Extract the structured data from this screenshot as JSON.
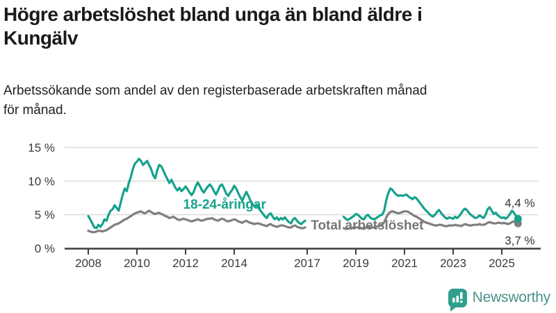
{
  "header": {
    "title_lines": [
      "Högre arbetslöshet bland unga än bland äldre i",
      "Kungälv"
    ],
    "subtitle_lines": [
      "Arbetssökande som andel av den registerbaserade arbetskraften månad",
      "för månad."
    ]
  },
  "chart_data": {
    "type": "line",
    "title": "Högre arbetslöshet bland unga än bland äldre i Kungälv",
    "subtitle": "Arbetssökande som andel av den registerbaserade arbetskraften månad för månad.",
    "grid": true,
    "x_axis": {
      "ticks": [
        2008,
        2010,
        2012,
        2014,
        2017,
        2019,
        2021,
        2023,
        2025
      ],
      "range": [
        2007.0,
        2026.5
      ]
    },
    "y_axis": {
      "ticks": [
        0,
        5,
        10,
        15
      ],
      "tick_labels": [
        "0 %",
        "5 %",
        "10 %",
        "15 %"
      ],
      "range": [
        0,
        15
      ],
      "unit": "%"
    },
    "data_gap": {
      "from": 2017.0,
      "to": 2018.5
    },
    "colors": {
      "axis": "#3d3d3d",
      "gridline": "#dcdcdc",
      "tick_label": "#3a3a3a",
      "end_label": "#333333"
    },
    "series": [
      {
        "name": "Total arbetslöshet",
        "color": "#7f7f7f",
        "label_color": "#757575",
        "inline_label": {
          "text": "Total arbetslöshet",
          "x": 2017.15,
          "y": 2.8
        },
        "end_label": {
          "text": "3,7 %",
          "x": 2025.12,
          "y": 0.55
        },
        "segments": [
          {
            "start_year": 2008.0,
            "points_per_year": 12,
            "values": [
              2.6,
              2.5,
              2.4,
              2.4,
              2.5,
              2.6,
              2.6,
              2.5,
              2.6,
              2.7,
              2.9,
              3.1,
              3.3,
              3.5,
              3.6,
              3.7,
              3.9,
              4.1,
              4.3,
              4.4,
              4.6,
              4.8,
              5.0,
              5.2,
              5.3,
              5.4,
              5.5,
              5.3,
              5.2,
              5.4,
              5.6,
              5.4,
              5.2,
              5.1,
              5.2,
              5.3,
              5.1,
              5.0,
              4.8,
              4.7,
              4.5,
              4.6,
              4.7,
              4.5,
              4.3,
              4.2,
              4.3,
              4.4,
              4.3,
              4.2,
              4.1,
              4.0,
              4.1,
              4.2,
              4.3,
              4.2,
              4.1,
              4.2,
              4.3,
              4.4,
              4.4,
              4.5,
              4.3,
              4.2,
              4.1,
              4.3,
              4.4,
              4.3,
              4.1,
              4.0,
              4.1,
              4.2,
              4.3,
              4.2,
              4.0,
              3.9,
              3.8,
              4.0,
              4.1,
              3.9,
              3.8,
              3.7,
              3.6,
              3.7,
              3.7,
              3.6,
              3.5,
              3.4,
              3.3,
              3.5,
              3.6,
              3.4,
              3.3,
              3.2,
              3.3,
              3.4,
              3.4,
              3.3,
              3.2,
              3.1,
              3.1,
              3.3,
              3.4,
              3.2,
              3.1,
              3.0,
              3.0,
              3.1
            ]
          },
          {
            "start_year": 2018.5,
            "points_per_year": 12,
            "values": [
              3.0,
              2.9,
              2.9,
              3.0,
              3.0,
              3.1,
              3.1,
              3.1,
              3.0,
              3.0,
              2.9,
              3.1,
              3.2,
              3.1,
              3.1,
              3.1,
              3.2,
              3.3,
              3.4,
              3.5,
              3.9,
              4.6,
              5.1,
              5.4,
              5.5,
              5.4,
              5.3,
              5.2,
              5.3,
              5.4,
              5.5,
              5.5,
              5.4,
              5.2,
              5.0,
              4.8,
              4.7,
              4.5,
              4.3,
              4.1,
              3.9,
              3.8,
              3.7,
              3.6,
              3.5,
              3.4,
              3.4,
              3.5,
              3.5,
              3.4,
              3.3,
              3.3,
              3.4,
              3.4,
              3.4,
              3.5,
              3.4,
              3.4,
              3.3,
              3.5,
              3.6,
              3.5,
              3.4,
              3.4,
              3.5,
              3.5,
              3.5,
              3.6,
              3.5,
              3.5,
              3.6,
              3.8,
              3.9,
              3.8,
              3.7,
              3.7,
              3.8,
              3.8,
              3.7,
              3.8,
              3.7,
              3.6,
              3.7,
              3.9,
              4.0,
              3.8,
              3.7
            ]
          }
        ]
      },
      {
        "name": "18-24-åringar",
        "color": "#16a28c",
        "label_color": "#16a28c",
        "inline_label": {
          "text": "18-24-åringar",
          "x": 2011.9,
          "y": 5.9
        },
        "end_label": {
          "text": "4,4 %",
          "x": 2025.12,
          "y": 6.15
        },
        "segments": [
          {
            "start_year": 2008.0,
            "points_per_year": 12,
            "values": [
              4.8,
              4.3,
              3.7,
              3.1,
              3.0,
              3.5,
              3.2,
              3.6,
              4.3,
              4.1,
              5.0,
              5.6,
              5.8,
              6.4,
              6.0,
              5.6,
              6.8,
              8.0,
              8.9,
              8.5,
              9.7,
              10.6,
              11.8,
              12.6,
              12.9,
              13.3,
              13.0,
              12.4,
              12.7,
              13.0,
              12.4,
              11.8,
              10.9,
              10.4,
              11.6,
              12.4,
              12.2,
              11.6,
              10.9,
              10.3,
              9.7,
              10.2,
              9.6,
              9.0,
              8.6,
              9.0,
              8.5,
              8.8,
              9.2,
              8.8,
              8.3,
              7.9,
              8.4,
              9.2,
              9.8,
              9.3,
              8.7,
              8.3,
              8.8,
              9.2,
              9.5,
              9.1,
              8.5,
              8.0,
              8.6,
              9.3,
              9.5,
              8.9,
              8.2,
              7.8,
              8.3,
              8.7,
              9.3,
              8.9,
              8.2,
              7.6,
              7.1,
              7.8,
              8.4,
              7.8,
              7.1,
              6.6,
              6.2,
              6.5,
              6.0,
              5.6,
              5.2,
              4.8,
              4.5,
              5.0,
              5.2,
              4.7,
              4.3,
              4.6,
              4.2,
              4.5,
              4.3,
              4.6,
              4.2,
              3.9,
              3.7,
              4.3,
              4.5,
              4.1,
              3.8,
              3.6,
              3.9,
              4.1
            ]
          },
          {
            "start_year": 2018.5,
            "points_per_year": 12,
            "values": [
              4.7,
              4.4,
              4.2,
              4.4,
              4.6,
              4.8,
              5.1,
              5.0,
              4.7,
              4.4,
              4.3,
              4.8,
              5.0,
              4.6,
              4.4,
              4.3,
              4.5,
              4.7,
              4.9,
              5.0,
              5.6,
              7.2,
              8.2,
              8.9,
              8.7,
              8.3,
              8.0,
              7.8,
              7.9,
              7.8,
              7.9,
              8.0,
              7.7,
              7.5,
              7.3,
              7.6,
              7.4,
              7.0,
              6.6,
              6.2,
              5.8,
              5.5,
              5.2,
              4.9,
              4.7,
              5.0,
              5.4,
              5.7,
              5.3,
              4.9,
              4.6,
              4.4,
              4.6,
              4.5,
              4.4,
              4.7,
              4.5,
              4.8,
              5.2,
              5.7,
              5.9,
              5.6,
              5.2,
              4.9,
              4.7,
              4.5,
              4.6,
              4.9,
              4.7,
              4.5,
              5.0,
              5.8,
              6.1,
              5.6,
              5.1,
              5.3,
              4.9,
              4.7,
              4.5,
              4.6,
              4.4,
              4.7,
              5.1,
              5.6,
              5.3,
              4.8,
              4.4
            ]
          }
        ]
      }
    ]
  },
  "logo": {
    "wordmark": "Newsworthy",
    "icon": "bar-chart-bubble-icon",
    "bubble_color": "#2f9f8e",
    "text_color": "#4a9189"
  }
}
